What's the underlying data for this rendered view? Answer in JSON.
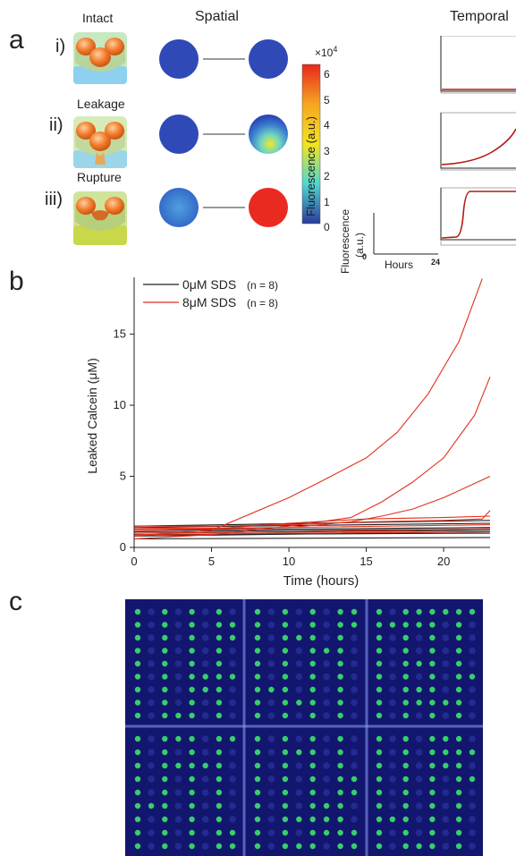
{
  "panel_a": {
    "label": "a",
    "spatial_heading": "Spatial",
    "temporal_heading": "Temporal",
    "rows": [
      {
        "numeral": "i)",
        "state": "Intact"
      },
      {
        "numeral": "ii)",
        "state": "Leakage"
      },
      {
        "numeral": "iii)",
        "state": "Rupture"
      }
    ],
    "colorbar": {
      "label": "Fluorescence (a.u.)",
      "exponent_text": "×10",
      "exponent_power": "4",
      "ticks": [
        "6",
        "5",
        "4",
        "3",
        "2",
        "1",
        "0"
      ],
      "colors": {
        "top": "#e8261b",
        "mid_high": "#f5a623",
        "mid": "#f3e41d",
        "mid_low": "#4fd7d0",
        "bottom": "#2a3b9b"
      }
    },
    "mini_axes": {
      "ylabel_line1": "Fluorescence",
      "ylabel_line2": "(a.u.)",
      "xlabel": "Hours",
      "x_start": "0",
      "x_end": "24"
    }
  },
  "panel_b": {
    "label": "b",
    "chart_data": {
      "type": "line",
      "xlabel": "Time (hours)",
      "ylabel": "Leaked Calcein (μM)",
      "xlim": [
        0,
        23
      ],
      "ylim": [
        0,
        19
      ],
      "xticks": [
        0,
        5,
        10,
        15,
        20
      ],
      "yticks": [
        0,
        5,
        10,
        15
      ],
      "legend_position": "top-left",
      "series": [
        {
          "name": "0μM SDS",
          "n_label": "(n = 8)",
          "color": "#222222",
          "group": "control",
          "lines": [
            {
              "x": [
                0,
                23
              ],
              "y": [
                0.6,
                0.7
              ]
            },
            {
              "x": [
                0,
                23
              ],
              "y": [
                0.9,
                1.0
              ]
            },
            {
              "x": [
                0,
                23
              ],
              "y": [
                1.0,
                1.2
              ]
            },
            {
              "x": [
                0,
                23
              ],
              "y": [
                1.2,
                1.4
              ]
            },
            {
              "x": [
                0,
                23
              ],
              "y": [
                1.4,
                1.7
              ]
            },
            {
              "x": [
                0,
                23
              ],
              "y": [
                1.5,
                1.9
              ]
            },
            {
              "x": [
                0,
                23
              ],
              "y": [
                0.8,
                1.1
              ]
            },
            {
              "x": [
                0,
                23
              ],
              "y": [
                1.1,
                1.3
              ]
            }
          ]
        },
        {
          "name": "8μM SDS",
          "n_label": "(n = 8)",
          "color": "#e0301e",
          "group": "treated",
          "lines": [
            {
              "x": [
                0,
                5,
                10,
                12,
                15,
                17,
                19,
                21,
                22.5
              ],
              "y": [
                0.8,
                1.2,
                3.5,
                4.6,
                6.3,
                8.1,
                10.8,
                14.5,
                18.9
              ]
            },
            {
              "x": [
                0,
                5,
                10,
                14,
                16,
                18,
                20,
                22,
                23
              ],
              "y": [
                0.6,
                0.9,
                1.5,
                2.1,
                3.2,
                4.6,
                6.3,
                9.3,
                12.0
              ]
            },
            {
              "x": [
                0,
                5,
                10,
                14,
                16,
                18,
                20,
                22,
                23
              ],
              "y": [
                1.4,
                1.3,
                1.4,
                1.8,
                2.2,
                2.7,
                3.5,
                4.5,
                5.0
              ]
            },
            {
              "x": [
                0,
                5,
                10,
                15,
                20,
                23
              ],
              "y": [
                1.2,
                1.3,
                1.7,
                2.0,
                2.1,
                2.2
              ]
            },
            {
              "x": [
                0,
                5,
                10,
                15,
                20,
                22.5,
                23
              ],
              "y": [
                1.5,
                1.5,
                1.6,
                1.8,
                1.9,
                2.0,
                2.6
              ]
            },
            {
              "x": [
                0,
                10,
                23
              ],
              "y": [
                1.0,
                1.1,
                1.3
              ]
            },
            {
              "x": [
                0,
                10,
                23
              ],
              "y": [
                0.9,
                1.0,
                1.1
              ]
            },
            {
              "x": [
                0,
                10,
                23
              ],
              "y": [
                1.3,
                1.4,
                1.6
              ]
            }
          ]
        }
      ]
    }
  },
  "panel_c": {
    "label": "c",
    "colors": {
      "background": "#13166e",
      "well_positive": "#39d96b",
      "well_negative": "#2e3aa8",
      "grid_line": "#8ea2ff"
    }
  }
}
